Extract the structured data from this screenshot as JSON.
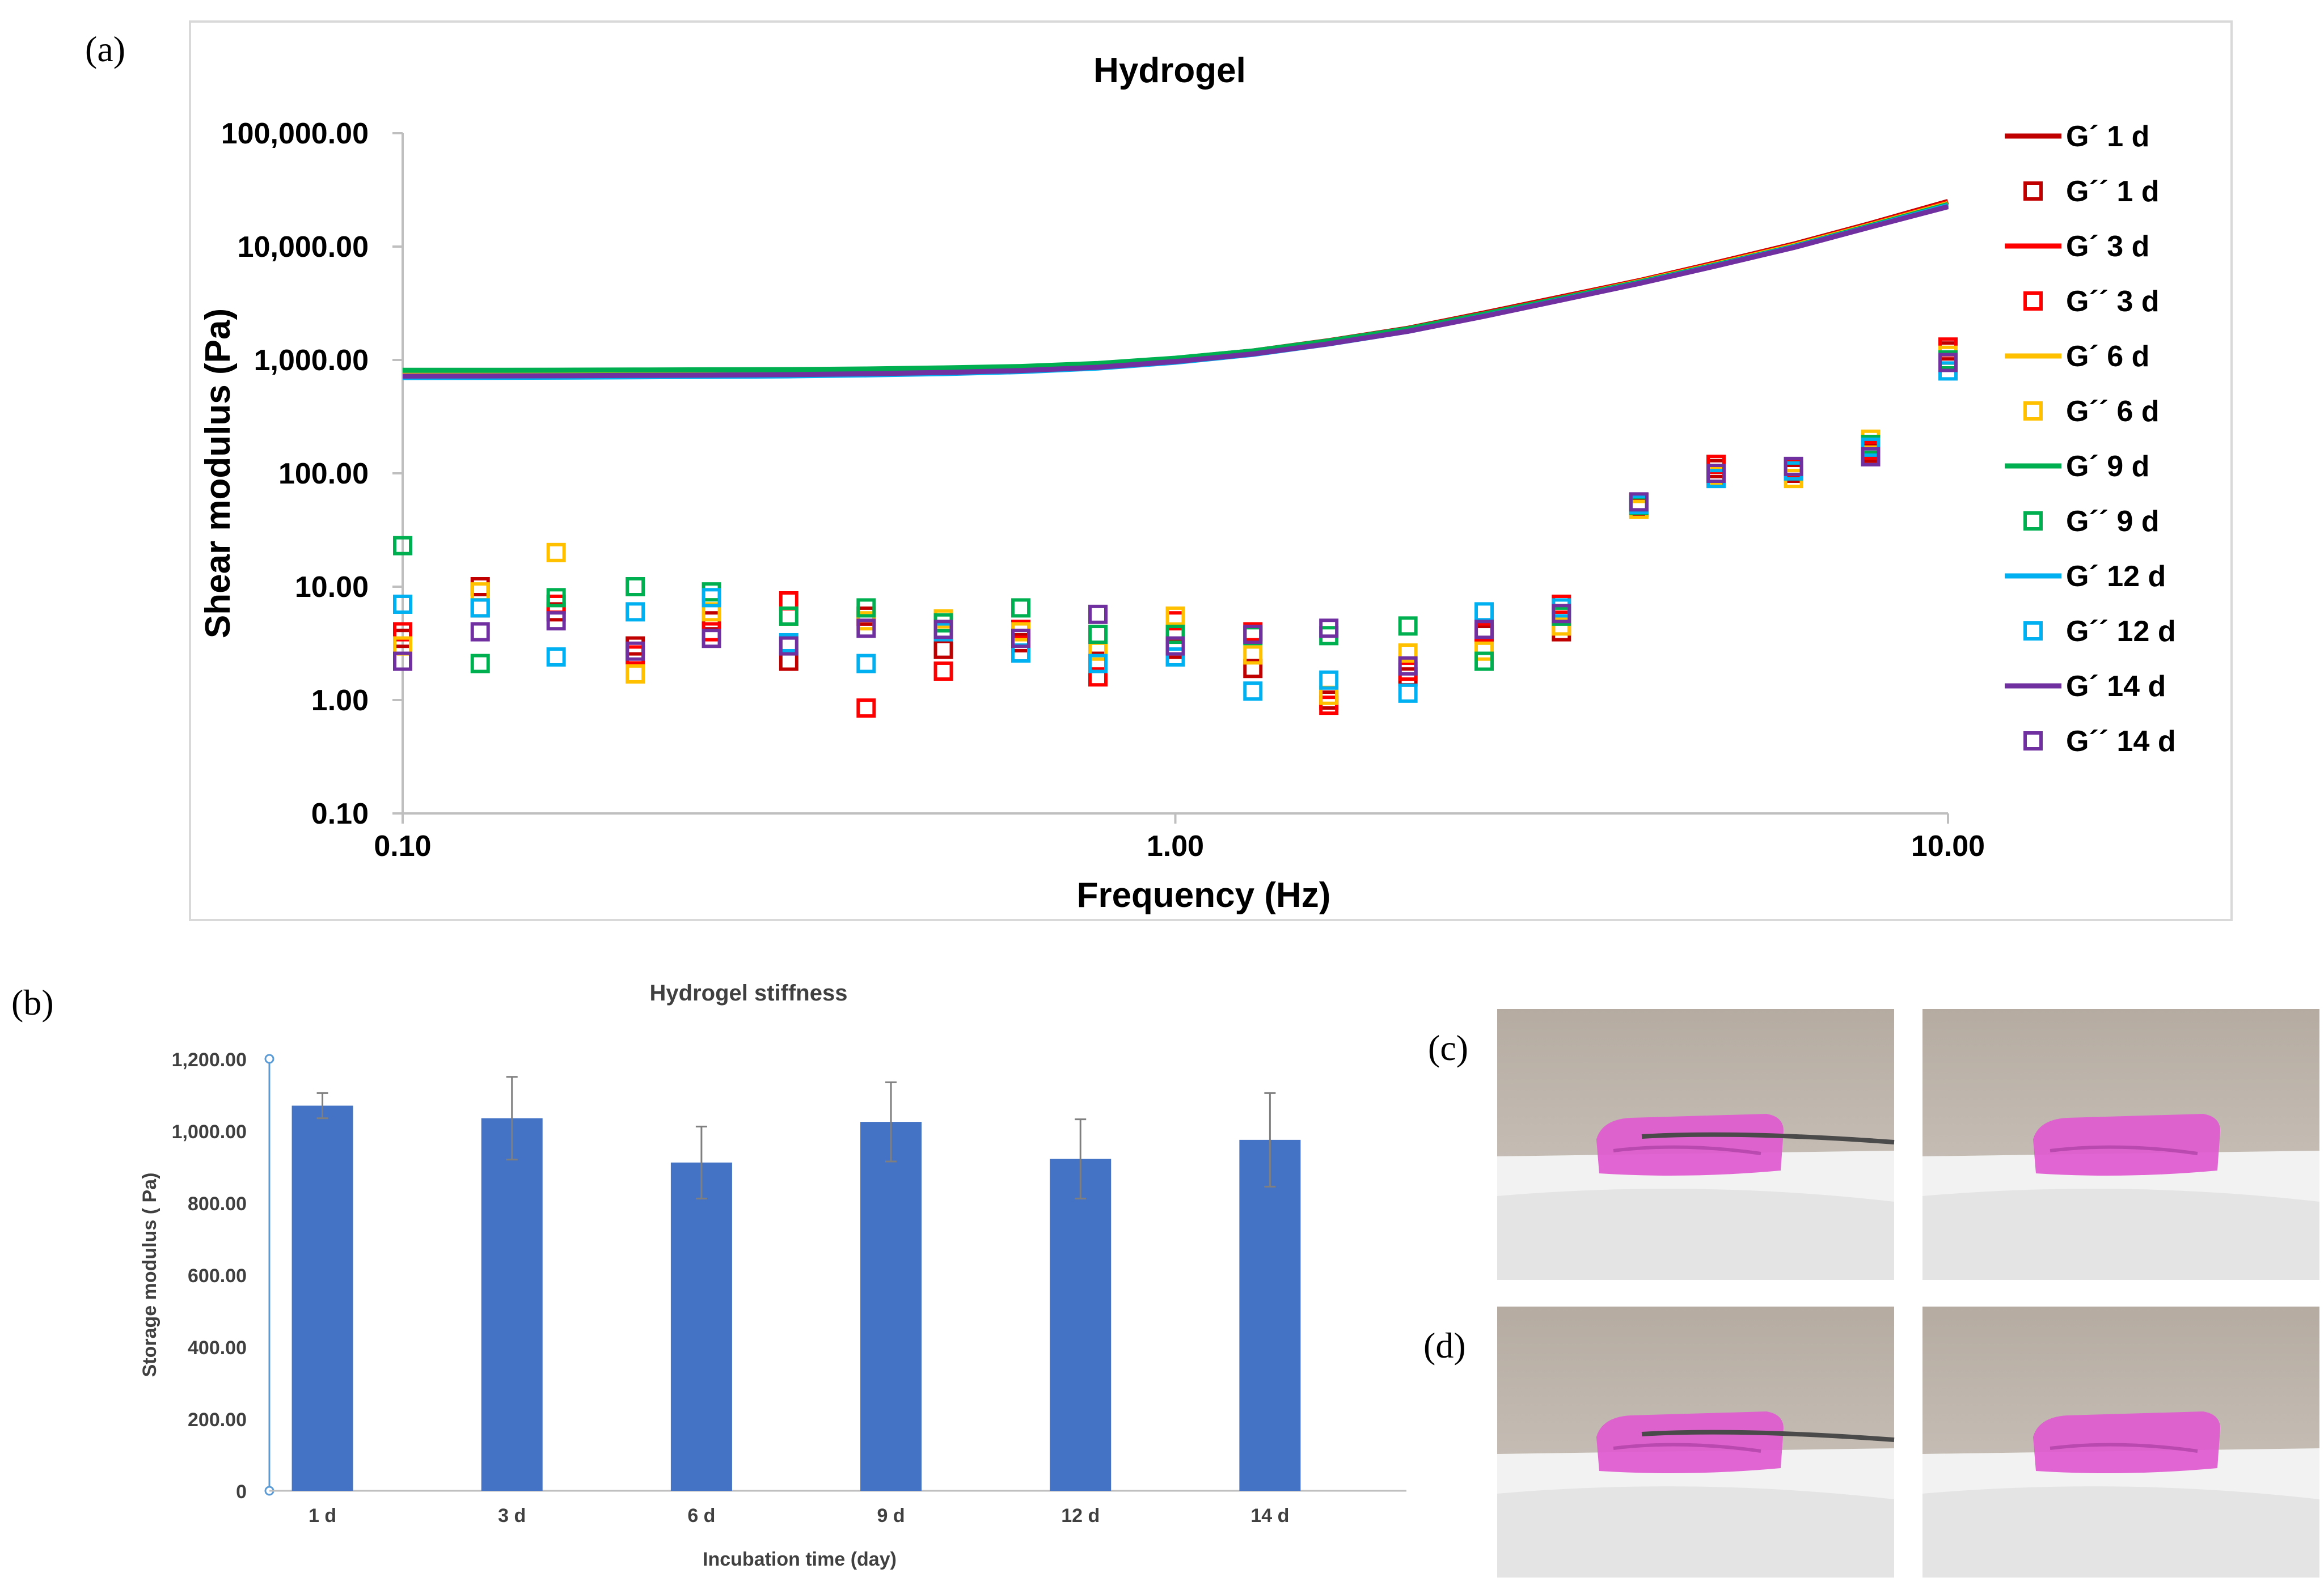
{
  "panels": {
    "a": "(a)",
    "b": "(b)",
    "c": "(c)",
    "d": "(d)"
  },
  "colors": {
    "series_1d": "#c00000",
    "series_3d": "#ff0000",
    "series_6d": "#ffc000",
    "series_9d": "#00b050",
    "series_12d": "#00b0f0",
    "series_14d": "#7030a0",
    "bar": "#4472c4",
    "photo_bg": "#b8aea4",
    "photo_table": "#f0f0f0",
    "hydrogel": "#e05ad0"
  },
  "photos": {
    "c_left": "hydrogel-sample-on-tweezers-photo",
    "c_right": "hydrogel-sample-photo",
    "d_left": "hydrogel-sample-on-tweezers-photo",
    "d_right": "hydrogel-sample-photo"
  },
  "chart_data": [
    {
      "type": "line",
      "title": "Hydrogel",
      "xlabel": "Frequency (Hz)",
      "ylabel": "Shear modulus (Pa)",
      "x_scale": "log",
      "y_scale": "log",
      "xlim": [
        0.1,
        10
      ],
      "ylim": [
        0.1,
        100000
      ],
      "x_ticks": [
        "0.10",
        "1.00",
        "10.00"
      ],
      "x_tick_values": [
        0.1,
        1,
        10
      ],
      "y_ticks": [
        "100,000.00",
        "10,000.00",
        "1,000.00",
        "100.00",
        "10.00",
        "1.00",
        "0.10"
      ],
      "y_tick_values": [
        100000,
        10000,
        1000,
        100,
        10,
        1,
        0.1
      ],
      "legend_position": "right",
      "x": [
        0.1,
        0.126,
        0.158,
        0.2,
        0.251,
        0.316,
        0.398,
        0.501,
        0.631,
        0.794,
        1.0,
        1.26,
        1.58,
        2.0,
        2.51,
        3.16,
        3.98,
        5.01,
        6.31,
        7.94,
        10.0
      ],
      "series": [
        {
          "name": "G´ 1 d",
          "kind": "line",
          "color_key": "series_1d",
          "values": [
            780,
            780,
            785,
            790,
            795,
            800,
            815,
            830,
            860,
            920,
            1030,
            1200,
            1480,
            1900,
            2600,
            3600,
            5000,
            7200,
            10500,
            16000,
            25000
          ]
        },
        {
          "name": "G´´ 1 d",
          "kind": "marker",
          "color_key": "series_1d",
          "values": [
            3.5,
            10,
            6,
            3,
            5,
            2.2,
            5.5,
            2.8,
            3.2,
            2.2,
            2.8,
            1.9,
            1.0,
            1.6,
            3.8,
            4,
            50,
            110,
            100,
            150,
            1200
          ]
        },
        {
          "name": "G´ 3 d",
          "kind": "line",
          "color_key": "series_3d",
          "values": [
            770,
            772,
            776,
            780,
            785,
            792,
            805,
            825,
            855,
            912,
            1020,
            1190,
            1460,
            1880,
            2560,
            3550,
            4950,
            7100,
            10300,
            15700,
            24500
          ]
        },
        {
          "name": "G´´ 3 d",
          "kind": "marker",
          "color_key": "series_3d",
          "values": [
            4,
            6.5,
            7,
            2.5,
            4,
            7.5,
            0.85,
            1.8,
            4.2,
            1.6,
            5,
            4,
            0.9,
            1.8,
            4,
            7,
            55,
            120,
            110,
            160,
            1300
          ]
        },
        {
          "name": "G´ 6 d",
          "kind": "line",
          "color_key": "series_6d",
          "values": [
            760,
            762,
            765,
            770,
            775,
            782,
            795,
            815,
            845,
            900,
            1010,
            1175,
            1440,
            1860,
            2530,
            3500,
            4900,
            7000,
            10200,
            15500,
            24000
          ]
        },
        {
          "name": "G´´ 6 d",
          "kind": "marker",
          "color_key": "series_6d",
          "values": [
            3,
            9,
            20,
            1.7,
            6,
            5.5,
            5,
            5.2,
            4,
            2.7,
            5.5,
            2.5,
            1.1,
            2.6,
            2.7,
            4.5,
            48,
            95,
            90,
            200,
            1100
          ]
        },
        {
          "name": "G´´ 9 d",
          "kind": "marker",
          "color_key": "series_9d",
          "values": [
            23,
            2.1,
            8,
            10,
            9,
            5.5,
            6.5,
            4.8,
            6.5,
            3.8,
            3.8,
            3.7,
            3.7,
            4.5,
            2.2,
            5.5,
            52,
            100,
            105,
            180,
            1000
          ]
        },
        {
          "name": "G´ 9 d",
          "kind": "line",
          "color_key": "series_9d",
          "values": [
            810,
            810,
            812,
            815,
            818,
            822,
            832,
            850,
            875,
            930,
            1035,
            1200,
            1470,
            1880,
            2540,
            3500,
            4850,
            6900,
            10000,
            15300,
            23500
          ]
        },
        {
          "name": "G´ 12 d",
          "kind": "line",
          "color_key": "series_12d",
          "values": [
            700,
            702,
            705,
            710,
            716,
            724,
            738,
            758,
            790,
            848,
            955,
            1120,
            1385,
            1790,
            2440,
            3400,
            4750,
            6800,
            9900,
            15000,
            23000
          ]
        },
        {
          "name": "G´´ 12 d",
          "kind": "marker",
          "color_key": "series_12d",
          "values": [
            7,
            6.5,
            2.4,
            6,
            8,
            3.2,
            2.1,
            4,
            2.6,
            2.1,
            2.4,
            1.2,
            1.5,
            1.15,
            6,
            6.5,
            53,
            90,
            105,
            170,
            800
          ]
        },
        {
          "name": "G´ 14 d",
          "kind": "line",
          "color_key": "series_14d",
          "values": [
            720,
            722,
            725,
            730,
            735,
            742,
            755,
            775,
            805,
            862,
            968,
            1130,
            1390,
            1790,
            2430,
            3380,
            4720,
            6750,
            9800,
            14900,
            22500
          ]
        },
        {
          "name": "G´´ 14 d",
          "kind": "marker",
          "color_key": "series_14d",
          "values": [
            2.2,
            4,
            5,
            2.7,
            3.5,
            3,
            4.3,
            4.2,
            3.5,
            5.7,
            3,
            3.8,
            4.3,
            2,
            4.2,
            5.8,
            56,
            100,
            115,
            140,
            950
          ]
        }
      ],
      "legend_order": [
        "G´ 1 d",
        "G´´ 1 d",
        "G´ 3 d",
        "G´´ 3 d",
        "G´ 6 d",
        "G´´ 6 d",
        "G´ 9 d",
        "G´´ 9 d",
        "G´ 12 d",
        "G´´ 12 d",
        "G´ 14 d",
        "G´´ 14 d"
      ]
    },
    {
      "type": "bar",
      "title": "Hydrogel stiffness",
      "xlabel": "Incubation time (day)",
      "ylabel": "Storage modulus ( Pa)",
      "categories": [
        "1 d",
        "3 d",
        "6 d",
        "9 d",
        "12 d",
        "14 d"
      ],
      "values": [
        1070,
        1035,
        912,
        1025,
        922,
        975
      ],
      "error": [
        35,
        115,
        100,
        110,
        110,
        130
      ],
      "ylim": [
        0,
        1200
      ],
      "y_ticks": [
        "1,200.00",
        "1,000.00",
        "800.00",
        "600.00",
        "400.00",
        "200.00",
        "0"
      ],
      "y_tick_values": [
        1200,
        1000,
        800,
        600,
        400,
        200,
        0
      ]
    }
  ]
}
